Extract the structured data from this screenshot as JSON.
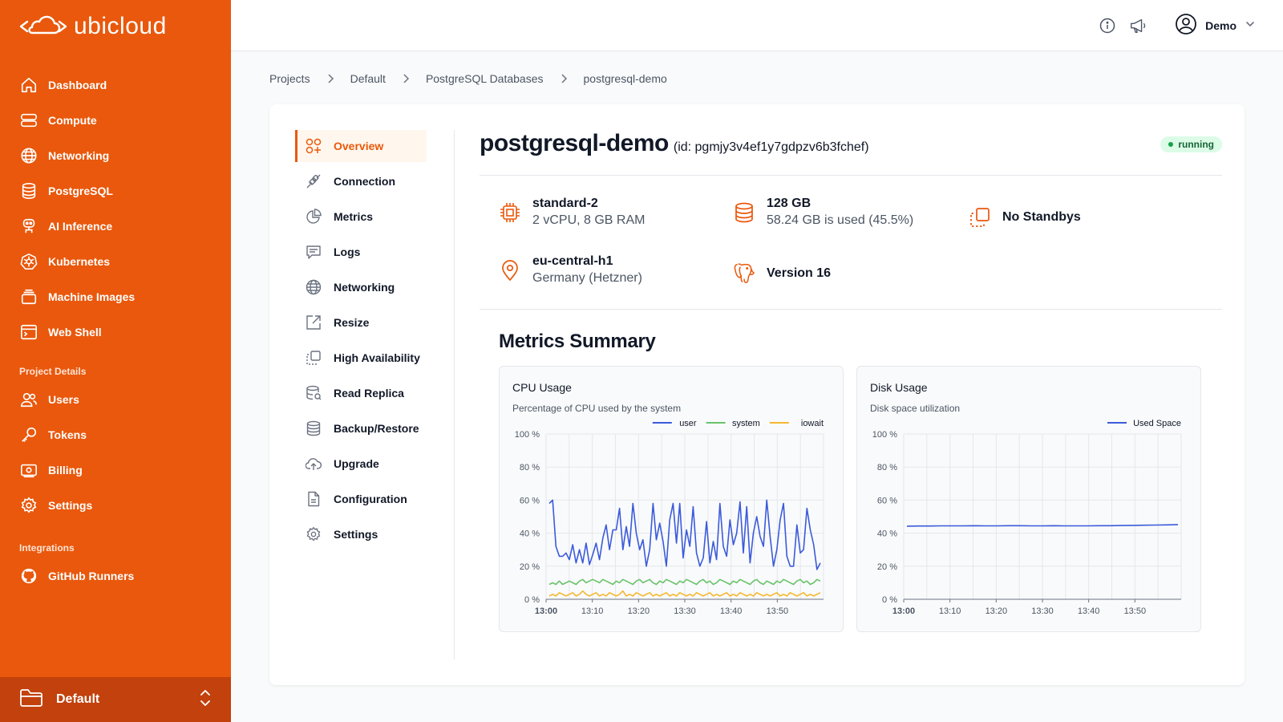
{
  "brand": {
    "name": "ubicloud",
    "accent": "#e9580c"
  },
  "sidebar": {
    "items": [
      {
        "label": "Dashboard",
        "icon": "home-icon"
      },
      {
        "label": "Compute",
        "icon": "server-icon"
      },
      {
        "label": "Networking",
        "icon": "globe-icon"
      },
      {
        "label": "PostgreSQL",
        "icon": "database-icon"
      },
      {
        "label": "AI Inference",
        "icon": "robot-icon"
      },
      {
        "label": "Kubernetes",
        "icon": "kubernetes-icon"
      },
      {
        "label": "Machine Images",
        "icon": "stack-icon"
      },
      {
        "label": "Web Shell",
        "icon": "terminal-icon"
      }
    ],
    "project_heading": "Project Details",
    "project_items": [
      {
        "label": "Users",
        "icon": "users-icon"
      },
      {
        "label": "Tokens",
        "icon": "key-icon"
      },
      {
        "label": "Billing",
        "icon": "billing-icon"
      },
      {
        "label": "Settings",
        "icon": "gear-icon"
      }
    ],
    "integrations_heading": "Integrations",
    "integration_items": [
      {
        "label": "GitHub Runners",
        "icon": "github-icon"
      }
    ],
    "project_switcher": "Default"
  },
  "topbar": {
    "user": "Demo"
  },
  "breadcrumb": [
    "Projects",
    "Default",
    "PostgreSQL Databases",
    "postgresql-demo"
  ],
  "subnav": [
    {
      "label": "Overview",
      "icon": "overview-icon",
      "active": true
    },
    {
      "label": "Connection",
      "icon": "plug-icon"
    },
    {
      "label": "Metrics",
      "icon": "pie-chart-icon"
    },
    {
      "label": "Logs",
      "icon": "chat-icon"
    },
    {
      "label": "Networking",
      "icon": "globe-icon"
    },
    {
      "label": "Resize",
      "icon": "resize-icon"
    },
    {
      "label": "High Availability",
      "icon": "copy-icon"
    },
    {
      "label": "Read Replica",
      "icon": "read-replica-icon"
    },
    {
      "label": "Backup/Restore",
      "icon": "database-icon"
    },
    {
      "label": "Upgrade",
      "icon": "cloud-upload-icon"
    },
    {
      "label": "Configuration",
      "icon": "document-icon"
    },
    {
      "label": "Settings",
      "icon": "gear-icon"
    }
  ],
  "database": {
    "name": "postgresql-demo",
    "id": "(id: pgmjy3v4ef1y7gdpzv6b3fchef)",
    "status": "running",
    "size": {
      "title": "standard-2",
      "detail": "2 vCPU, 8 GB RAM"
    },
    "storage": {
      "title": "128 GB",
      "detail": "58.24 GB is used (45.5%)"
    },
    "standby": {
      "title": "No Standbys"
    },
    "location": {
      "title": "eu-central-h1",
      "detail": "Germany (Hetzner)"
    },
    "version": {
      "title": "Version 16"
    }
  },
  "metrics": {
    "title": "Metrics Summary",
    "cpu": {
      "title": "CPU Usage",
      "subtitle": "Percentage of CPU used by the system"
    },
    "disk": {
      "title": "Disk Usage",
      "subtitle": "Disk space utilization"
    }
  },
  "chart_data": [
    {
      "type": "line",
      "title": "CPU Usage",
      "subtitle": "Percentage of CPU used by the system",
      "x_ticks": [
        "13:00",
        "13:10",
        "13:20",
        "13:30",
        "13:40",
        "13:50"
      ],
      "y_ticks": [
        "100 %",
        "80 %",
        "60 %",
        "40 %",
        "20 %",
        "0 %"
      ],
      "ylim": [
        0,
        100
      ],
      "xlim_minutes": [
        0,
        60
      ],
      "legend": "top-right",
      "grid": true,
      "series": [
        {
          "name": "user",
          "color": "#3b5bdb",
          "values": [
            58,
            60,
            32,
            26,
            26,
            28,
            24,
            33,
            22,
            30,
            22,
            34,
            21,
            27,
            34,
            24,
            37,
            45,
            30,
            42,
            42,
            55,
            30,
            44,
            32,
            58,
            40,
            30,
            36,
            20,
            30,
            58,
            36,
            46,
            35,
            20,
            48,
            58,
            34,
            58,
            25,
            42,
            32,
            56,
            28,
            20,
            25,
            47,
            22,
            35,
            24,
            58,
            32,
            26,
            48,
            33,
            40,
            59,
            28,
            56,
            22,
            40,
            50,
            38,
            32,
            60,
            38,
            20,
            30,
            48,
            58,
            26,
            20,
            20,
            45,
            28,
            30,
            55,
            42,
            33,
            18,
            22
          ]
        },
        {
          "name": "system",
          "color": "#69c36b",
          "values": [
            9,
            10,
            9,
            11,
            9,
            10,
            11,
            10,
            9,
            11,
            12,
            10,
            11,
            12,
            11,
            10,
            12,
            11,
            10,
            9,
            11,
            10,
            12,
            11,
            10,
            9,
            11,
            12,
            10,
            11,
            12,
            10,
            9,
            11,
            10,
            12,
            11,
            10,
            9,
            11,
            10,
            12,
            11,
            10,
            9,
            11,
            12,
            10,
            11,
            9,
            10,
            12,
            11,
            10,
            9,
            11,
            10,
            12,
            11,
            10,
            9,
            11,
            12,
            10,
            9,
            11,
            10,
            9,
            11,
            10,
            12,
            11,
            10,
            9,
            11,
            12,
            10,
            11,
            9,
            10,
            12,
            11
          ]
        },
        {
          "name": "iowait",
          "color": "#f5b82e",
          "values": [
            2,
            3,
            2,
            4,
            3,
            2,
            3,
            4,
            2,
            3,
            5,
            3,
            2,
            3,
            4,
            2,
            3,
            2,
            4,
            3,
            2,
            3,
            5,
            2,
            3,
            2,
            4,
            3,
            2,
            3,
            4,
            2,
            3,
            2,
            3,
            4,
            2,
            3,
            2,
            4,
            3,
            2,
            3,
            2,
            4,
            3,
            2,
            3,
            4,
            2,
            3,
            2,
            3,
            4,
            2,
            3,
            2,
            4,
            3,
            2,
            3,
            2,
            4,
            3,
            2,
            3,
            2,
            3,
            4,
            2,
            3,
            2,
            4,
            3,
            2,
            3,
            4,
            2,
            3,
            2,
            3,
            4
          ]
        }
      ]
    },
    {
      "type": "line",
      "title": "Disk Usage",
      "subtitle": "Disk space utilization",
      "x_ticks": [
        "13:00",
        "13:10",
        "13:20",
        "13:30",
        "13:40",
        "13:50"
      ],
      "y_ticks": [
        "100 %",
        "80 %",
        "60 %",
        "40 %",
        "20 %",
        "0 %"
      ],
      "ylim": [
        0,
        100
      ],
      "xlim_minutes": [
        0,
        60
      ],
      "legend": "top-right",
      "grid": true,
      "series": [
        {
          "name": "Used Space",
          "color": "#3b5bdb",
          "values": [
            44.2,
            44.3,
            44.3,
            44.4,
            44.4,
            44.4,
            44.5,
            44.4,
            44.4,
            44.5,
            44.5,
            44.4,
            44.4,
            44.5,
            44.4,
            44.4,
            44.4,
            44.5,
            44.5,
            44.6,
            44.7,
            44.8,
            44.9,
            45.0,
            45.2
          ]
        }
      ]
    }
  ]
}
